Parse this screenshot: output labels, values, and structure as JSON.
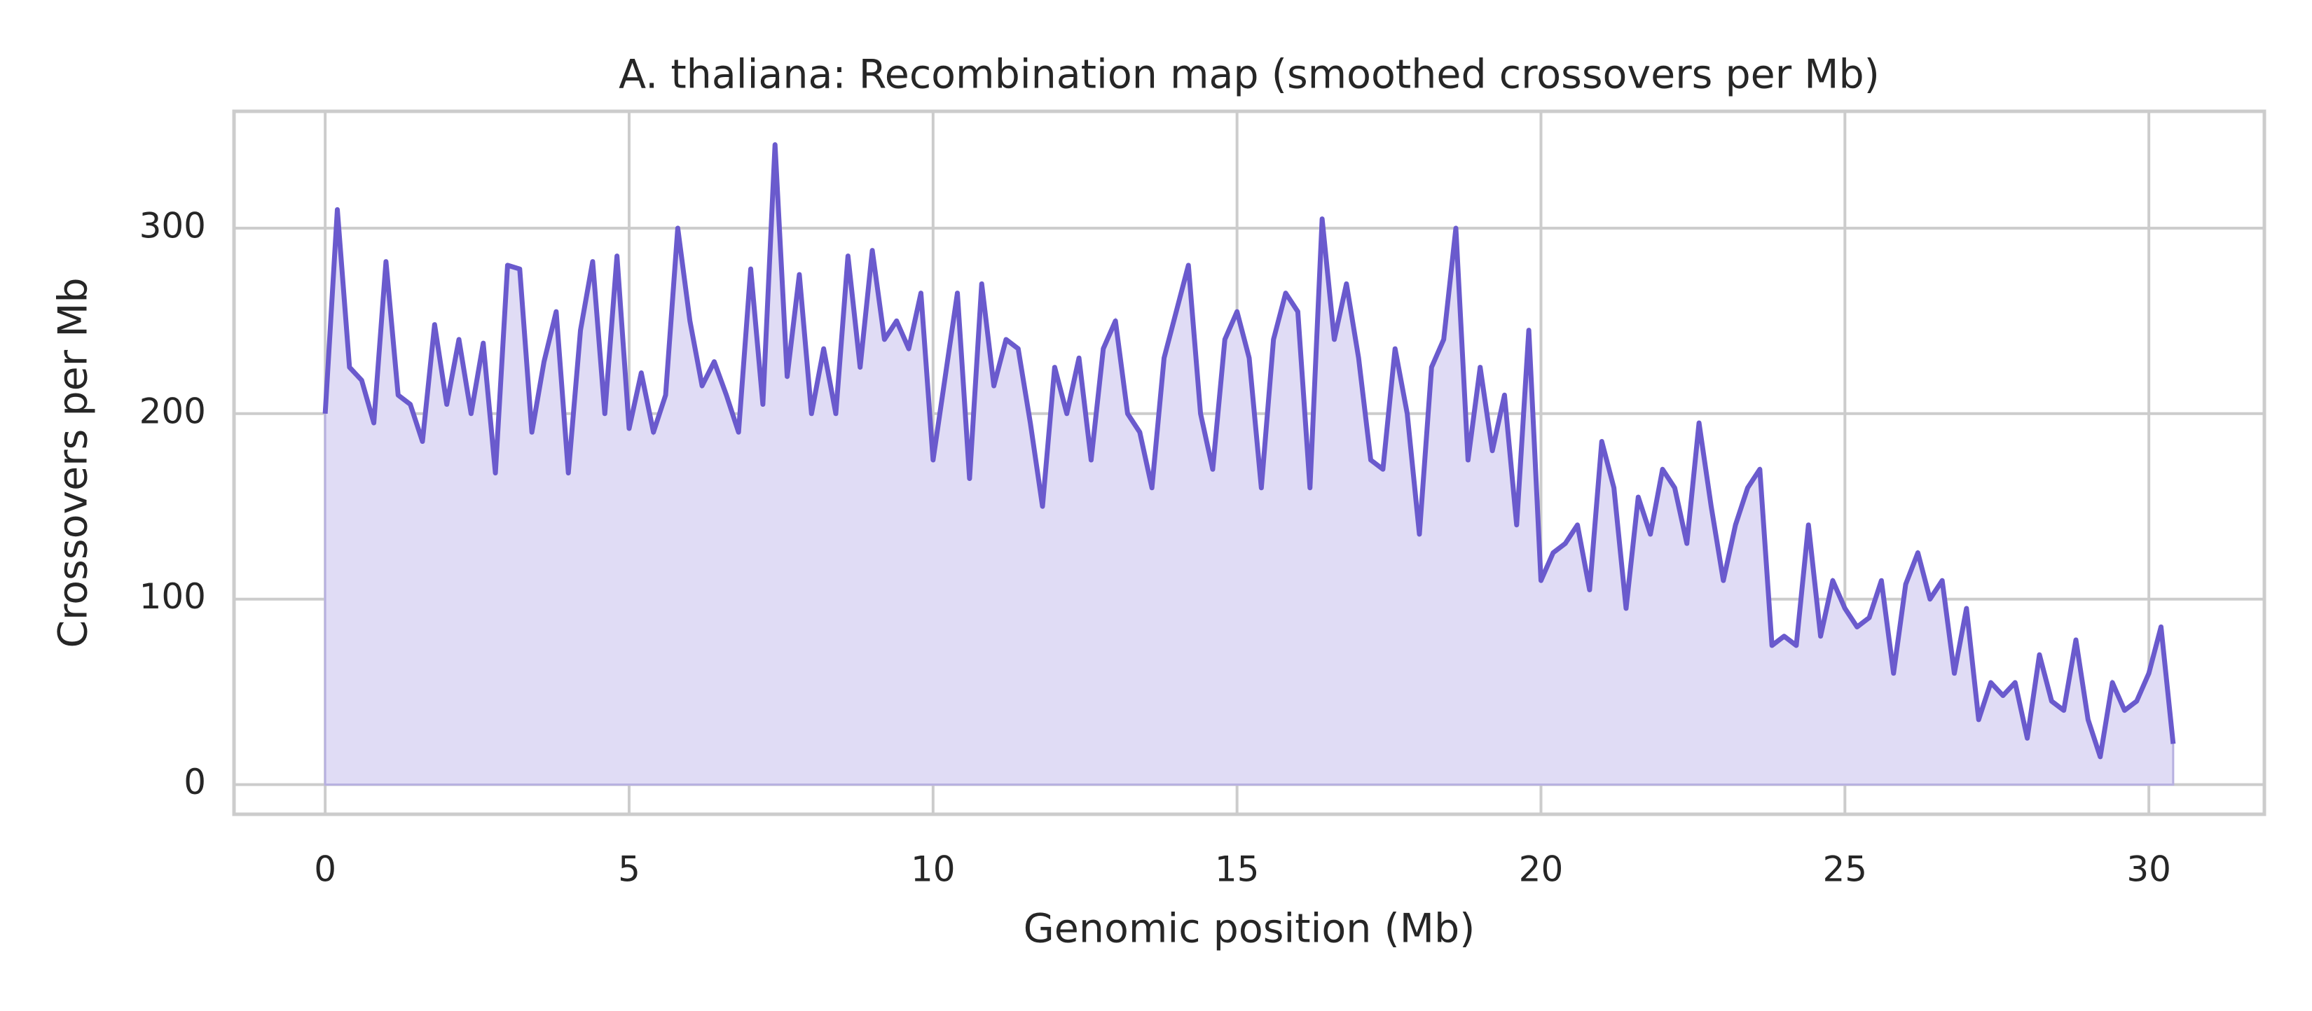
{
  "chart_data": {
    "type": "area",
    "title": "A. thaliana: Recombination map (smoothed crossovers per Mb)",
    "x_label": "Genomic position (Mb)",
    "y_label": "Crossovers per Mb",
    "x": [
      0,
      0.2,
      0.4,
      0.6,
      0.8,
      1,
      1.2,
      1.4,
      1.6,
      1.8,
      2,
      2.2,
      2.4,
      2.6,
      2.8,
      3,
      3.2,
      3.4,
      3.6,
      3.8,
      4,
      4.2,
      4.4,
      4.6,
      4.8,
      5,
      5.2,
      5.4,
      5.6,
      5.8,
      6,
      6.2,
      6.4,
      6.6,
      6.8,
      7,
      7.2,
      7.4,
      7.6,
      7.8,
      8,
      8.2,
      8.4,
      8.6,
      8.8,
      9,
      9.2,
      9.4,
      9.6,
      9.8,
      10,
      10.2,
      10.4,
      10.6,
      10.8,
      11,
      11.2,
      11.4,
      11.6,
      11.8,
      12,
      12.2,
      12.4,
      12.6,
      12.8,
      13,
      13.2,
      13.4,
      13.6,
      13.8,
      14,
      14.2,
      14.4,
      14.6,
      14.8,
      15,
      15.2,
      15.4,
      15.6,
      15.8,
      16,
      16.2,
      16.4,
      16.6,
      16.8,
      17,
      17.2,
      17.4,
      17.6,
      17.8,
      18,
      18.2,
      18.4,
      18.6,
      18.8,
      19,
      19.2,
      19.4,
      19.6,
      19.8,
      20,
      20.2,
      20.4,
      20.6,
      20.8,
      21,
      21.2,
      21.4,
      21.6,
      21.8,
      22,
      22.2,
      22.4,
      22.6,
      22.8,
      23,
      23.2,
      23.4,
      23.6,
      23.8,
      24,
      24.2,
      24.4,
      24.6,
      24.8,
      25,
      25.2,
      25.4,
      25.6,
      25.8,
      26,
      26.2,
      26.4,
      26.6,
      26.8,
      27,
      27.2,
      27.4,
      27.6,
      27.8,
      28,
      28.2,
      28.4,
      28.6,
      28.8,
      29,
      29.2,
      29.4,
      29.6,
      29.8,
      30,
      30.2,
      30.4
    ],
    "series": [
      {
        "name": "Crossovers per Mb",
        "color": "#6a5acd",
        "fill": "#e0dcf5",
        "values": [
          200,
          310,
          225,
          218,
          195,
          282,
          210,
          205,
          185,
          248,
          205,
          240,
          200,
          238,
          168,
          280,
          278,
          190,
          228,
          255,
          168,
          245,
          282,
          200,
          285,
          192,
          222,
          190,
          210,
          300,
          250,
          215,
          228,
          210,
          190,
          278,
          205,
          345,
          220,
          275,
          200,
          235,
          200,
          285,
          225,
          288,
          240,
          250,
          235,
          265,
          175,
          220,
          265,
          165,
          270,
          215,
          240,
          235,
          195,
          150,
          225,
          200,
          230,
          175,
          235,
          250,
          200,
          190,
          160,
          230,
          255,
          280,
          200,
          170,
          240,
          255,
          230,
          160,
          240,
          265,
          255,
          160,
          305,
          240,
          270,
          230,
          175,
          170,
          235,
          200,
          135,
          225,
          240,
          300,
          175,
          225,
          180,
          210,
          140,
          245,
          110,
          125,
          130,
          140,
          105,
          185,
          160,
          95,
          155,
          135,
          170,
          160,
          130,
          195,
          150,
          110,
          140,
          160,
          170,
          75,
          80,
          75,
          140,
          80,
          110,
          95,
          85,
          90,
          110,
          60,
          108,
          125,
          100,
          110,
          60,
          95,
          35,
          55,
          48,
          55,
          25,
          70,
          45,
          40,
          78,
          35,
          15,
          55,
          40,
          45,
          60,
          85,
          22
        ]
      }
    ],
    "xlim": [
      -1.5,
      31.9
    ],
    "ylim": [
      -16,
      363
    ],
    "xticks": [
      0,
      5,
      10,
      15,
      20,
      25,
      30
    ],
    "yticks": [
      0,
      100,
      200,
      300
    ],
    "grid": true
  }
}
